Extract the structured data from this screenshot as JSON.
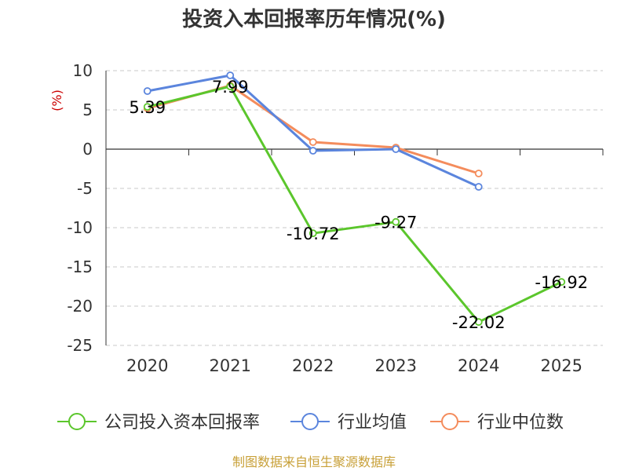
{
  "chart_data": {
    "type": "line",
    "title": "投资入本回报率历年情况(%)",
    "ylabel": "(%)",
    "xlabel": "",
    "categories": [
      "2020",
      "2021",
      "2022",
      "2023",
      "2024",
      "2025"
    ],
    "ylim": [
      -25,
      10
    ],
    "yticks": [
      10,
      5,
      0,
      -5,
      -10,
      -15,
      -20,
      -25
    ],
    "grid": true,
    "legend_position": "bottom",
    "series": [
      {
        "name": "公司投入资本回报率",
        "color": "#5bc62c",
        "values": [
          5.39,
          7.99,
          -10.72,
          -9.27,
          -22.02,
          -16.92
        ],
        "labels": [
          "5.39",
          "7.99",
          "-10.72",
          "-9.27",
          "-22.02",
          "-16.92"
        ]
      },
      {
        "name": "行业均值",
        "color": "#5b85dd",
        "values": [
          7.4,
          9.4,
          -0.2,
          0.0,
          -4.8,
          null
        ],
        "labels": null
      },
      {
        "name": "行业中位数",
        "color": "#f48c5c",
        "values": [
          5.2,
          8.1,
          0.9,
          0.2,
          -3.1,
          null
        ],
        "labels": null
      }
    ],
    "source": "制图数据来自恒生聚源数据库"
  }
}
